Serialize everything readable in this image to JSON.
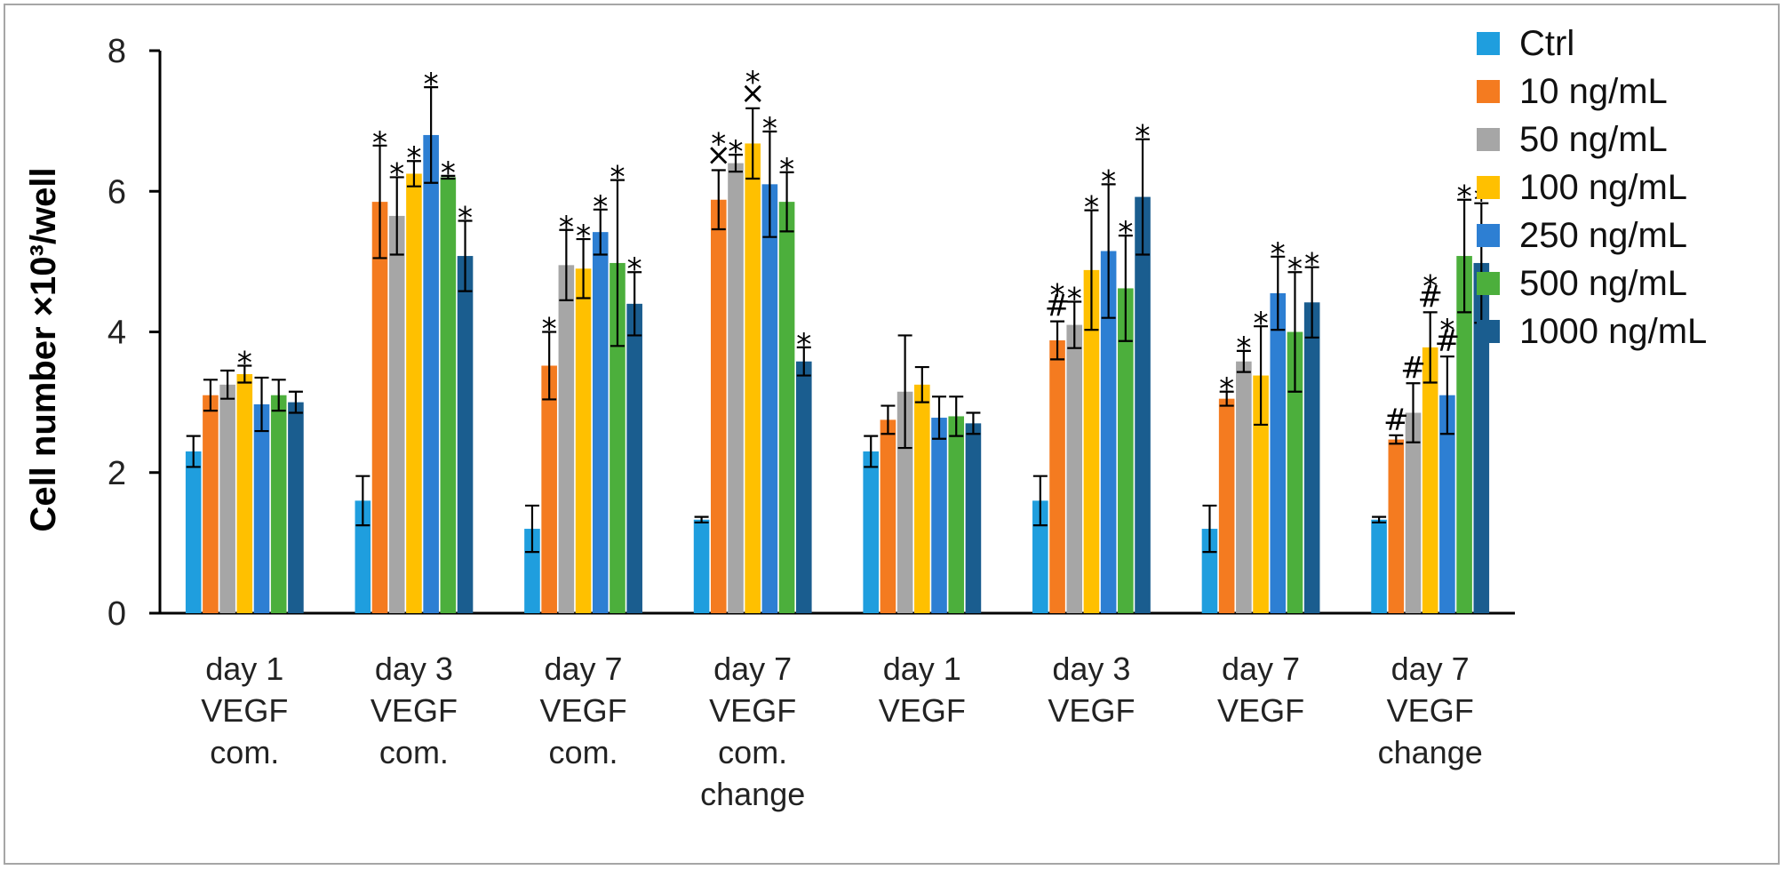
{
  "chart_data": {
    "type": "bar",
    "title": "",
    "xlabel": "",
    "ylabel": "Cell number ×10³/well",
    "ylim": [
      0,
      8
    ],
    "yticks": [
      "0",
      "2",
      "4",
      "6",
      "8"
    ],
    "grid": false,
    "legend_position": "right",
    "categories": [
      [
        "day 1",
        "VEGF",
        "com."
      ],
      [
        "day 3",
        "VEGF",
        "com."
      ],
      [
        "day 7",
        "VEGF",
        "com."
      ],
      [
        "day 7",
        "VEGF",
        "com.",
        "change"
      ],
      [
        "day 1",
        "VEGF"
      ],
      [
        "day 3",
        "VEGF"
      ],
      [
        "day 7",
        "VEGF"
      ],
      [
        "day 7",
        "VEGF",
        "change"
      ]
    ],
    "series": [
      {
        "name": "Ctrl",
        "color": "#1f9ede",
        "values": [
          2.3,
          1.6,
          1.2,
          1.33,
          2.3,
          1.6,
          1.2,
          1.33
        ],
        "errors": [
          0.22,
          0.35,
          0.33,
          0.04,
          0.22,
          0.35,
          0.33,
          0.04
        ],
        "marks": [
          "",
          "",
          "",
          "",
          "",
          "",
          "",
          ""
        ]
      },
      {
        "name": "10 ng/mL",
        "color": "#f47b20",
        "values": [
          3.1,
          5.85,
          3.52,
          5.88,
          2.75,
          3.88,
          3.05,
          2.47
        ],
        "errors": [
          0.22,
          0.8,
          0.48,
          0.42,
          0.2,
          0.27,
          0.1,
          0.06
        ],
        "marks": [
          "",
          "*",
          "*",
          "*×",
          "",
          "*#",
          "*",
          "#"
        ]
      },
      {
        "name": "50 ng/mL",
        "color": "#a6a6a6",
        "values": [
          3.25,
          5.65,
          4.95,
          6.4,
          3.15,
          4.1,
          3.58,
          2.85
        ],
        "errors": [
          0.2,
          0.55,
          0.5,
          0.12,
          0.8,
          0.33,
          0.15,
          0.42
        ],
        "marks": [
          "",
          "*",
          "*",
          "*",
          "",
          "*",
          "*",
          "#"
        ]
      },
      {
        "name": "100 ng/mL",
        "color": "#ffc000",
        "values": [
          3.4,
          6.25,
          4.9,
          6.68,
          3.25,
          4.88,
          3.38,
          3.78
        ],
        "errors": [
          0.12,
          0.18,
          0.42,
          0.5,
          0.25,
          0.85,
          0.7,
          0.5
        ],
        "marks": [
          "*",
          "*",
          "*",
          "*×",
          "",
          "*",
          "*",
          "*#"
        ]
      },
      {
        "name": "250 ng/mL",
        "color": "#2d7fd3",
        "values": [
          2.97,
          6.8,
          5.42,
          6.1,
          2.78,
          5.15,
          4.55,
          3.1
        ],
        "errors": [
          0.38,
          0.68,
          0.32,
          0.75,
          0.3,
          0.95,
          0.52,
          0.55
        ],
        "marks": [
          "",
          "*",
          "*",
          "*",
          "",
          "*",
          "*",
          "*#"
        ]
      },
      {
        "name": "500 ng/mL",
        "color": "#4caf3c",
        "values": [
          3.1,
          6.2,
          4.98,
          5.85,
          2.8,
          4.62,
          4.0,
          5.08
        ],
        "errors": [
          0.22,
          0.02,
          1.18,
          0.42,
          0.28,
          0.75,
          0.85,
          0.8
        ],
        "marks": [
          "",
          "*",
          "*",
          "*",
          "",
          "*",
          "*",
          "*"
        ]
      },
      {
        "name": "1000 ng/mL",
        "color": "#1a5d8f",
        "values": [
          3.0,
          5.08,
          4.4,
          3.58,
          2.7,
          5.92,
          4.42,
          4.98
        ],
        "errors": [
          0.15,
          0.5,
          0.45,
          0.2,
          0.15,
          0.82,
          0.5,
          0.85
        ],
        "marks": [
          "",
          "*",
          "*",
          "*",
          "",
          "*",
          "*",
          "*"
        ]
      }
    ]
  }
}
